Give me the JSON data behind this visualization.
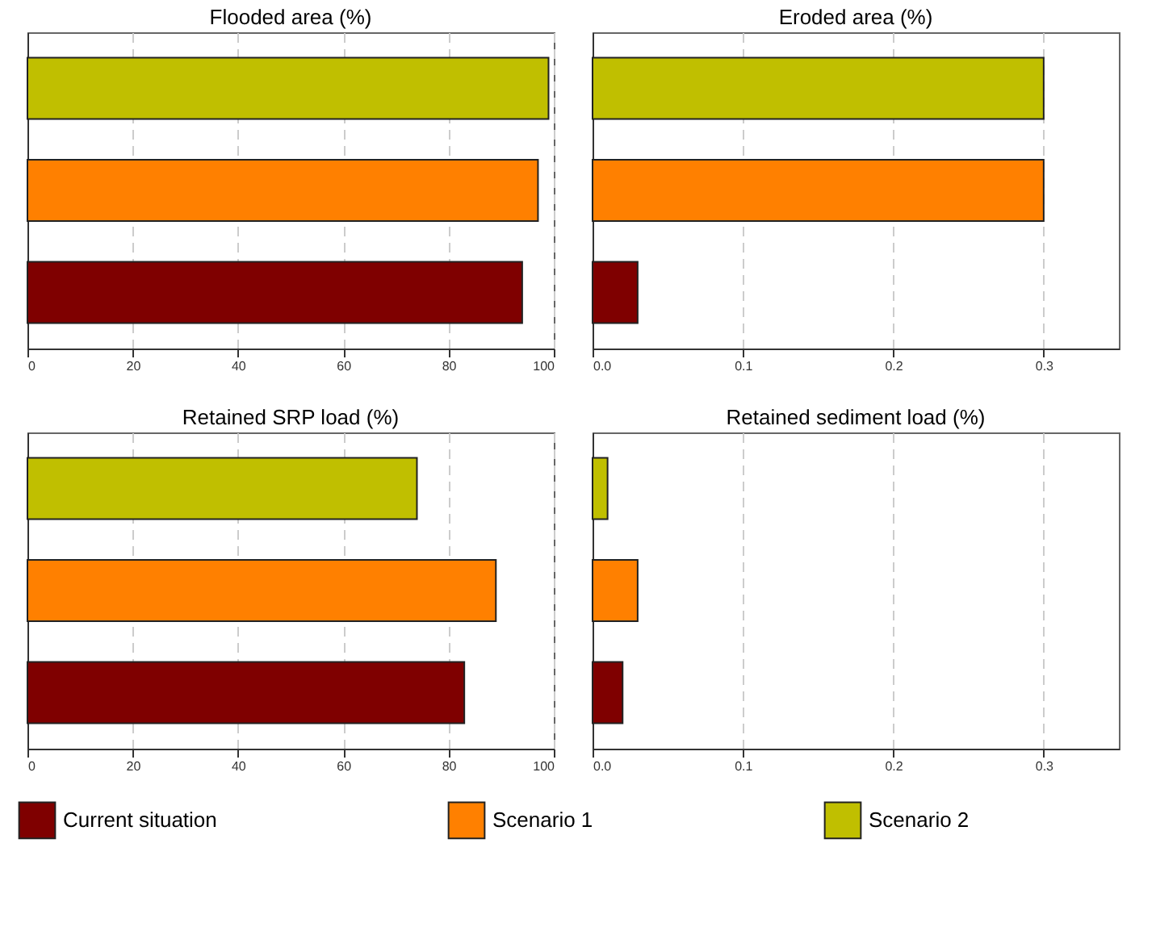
{
  "chart_data": [
    {
      "type": "bar",
      "orientation": "horizontal",
      "title": "Flooded area (%)",
      "categories": [
        null,
        null,
        null
      ],
      "xlim": [
        0,
        100
      ],
      "xticks": [
        0,
        20,
        40,
        60,
        80,
        100
      ],
      "grid": "x",
      "series": [
        {
          "color": "#c0bf00",
          "values": [
            99,
            null,
            null
          ]
        },
        {
          "color": "#ff8000",
          "values": [
            null,
            97,
            null
          ]
        },
        {
          "color": "#7f0000",
          "values": [
            null,
            null,
            94
          ]
        }
      ]
    },
    {
      "type": "bar",
      "orientation": "horizontal",
      "title": "Eroded area (%)",
      "categories": [
        null,
        null,
        null
      ],
      "xlim": [
        0,
        0.35
      ],
      "xticks": [
        {
          "value": 0,
          "label": "0.0"
        },
        0.1,
        0.2,
        0.3
      ],
      "grid": "x",
      "series": [
        {
          "color": "#c0bf00",
          "values": [
            0.3,
            null,
            null
          ]
        },
        {
          "color": "#ff8000",
          "values": [
            null,
            0.3,
            null
          ]
        },
        {
          "color": "#7f0000",
          "values": [
            null,
            null,
            0.03
          ]
        }
      ]
    },
    {
      "type": "bar",
      "orientation": "horizontal",
      "title": "Retained SRP load (%)",
      "categories": [
        null,
        null,
        null
      ],
      "xlim": [
        0,
        100
      ],
      "xticks": [
        0,
        20,
        40,
        60,
        80,
        100
      ],
      "grid": "x",
      "series": [
        {
          "color": "#c0bf00",
          "values": [
            74,
            null,
            null
          ]
        },
        {
          "color": "#ff8000",
          "values": [
            null,
            89,
            null
          ]
        },
        {
          "color": "#7f0000",
          "values": [
            null,
            null,
            83
          ]
        }
      ]
    },
    {
      "type": "bar",
      "orientation": "horizontal",
      "title": "Retained sediment load (%)",
      "categories": [
        null,
        null,
        null
      ],
      "xlim": [
        0,
        0.35
      ],
      "xticks": [
        {
          "value": 0,
          "label": "0.0"
        },
        0.1,
        0.2,
        0.3
      ],
      "grid": "x",
      "legend": "bottom",
      "series": [
        {
          "name": "Scenario 2",
          "color": "#c0bf00",
          "values": [
            0.01,
            null,
            null
          ]
        },
        {
          "name": "Scenario 1",
          "color": "#ff8000",
          "values": [
            null,
            0.03,
            null
          ]
        },
        {
          "name": "Current situation",
          "color": "#7f0000",
          "values": [
            null,
            null,
            0.02
          ]
        }
      ]
    }
  ]
}
